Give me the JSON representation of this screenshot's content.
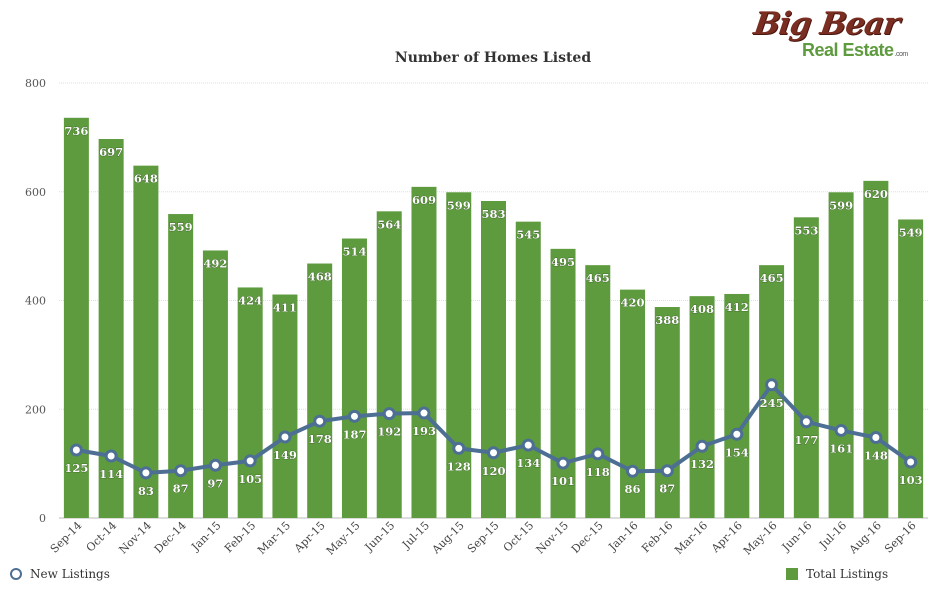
{
  "logo": {
    "line1": "Big Bear",
    "line2": "Real Estate",
    "suffix": ".com"
  },
  "chart_data": {
    "type": "bar",
    "title": "Number of Homes Listed",
    "categories": [
      "Sep-14",
      "Oct-14",
      "Nov-14",
      "Dec-14",
      "Jan-15",
      "Feb-15",
      "Mar-15",
      "Apr-15",
      "May-15",
      "Jun-15",
      "Jul-15",
      "Aug-15",
      "Sep-15",
      "Oct-15",
      "Nov-15",
      "Dec-15",
      "Jan-16",
      "Feb-16",
      "Mar-16",
      "Apr-16",
      "May-16",
      "Jun-16",
      "Jul-16",
      "Aug-16",
      "Sep-16"
    ],
    "series": [
      {
        "name": "Total Listings",
        "type": "bar",
        "color": "#5e9a3e",
        "values": [
          736,
          697,
          648,
          559,
          492,
          424,
          411,
          468,
          514,
          564,
          609,
          599,
          583,
          545,
          495,
          465,
          420,
          388,
          408,
          412,
          465,
          553,
          599,
          620,
          549
        ]
      },
      {
        "name": "New Listings",
        "type": "line",
        "color": "#4d6f94",
        "values": [
          125,
          114,
          83,
          87,
          97,
          105,
          149,
          178,
          187,
          192,
          193,
          128,
          120,
          134,
          101,
          118,
          86,
          87,
          132,
          154,
          245,
          177,
          161,
          148,
          103
        ]
      }
    ],
    "yticks": [
      0,
      200,
      400,
      600,
      800
    ],
    "ylim": [
      0,
      800
    ],
    "grid": true,
    "legend": "bottom"
  }
}
